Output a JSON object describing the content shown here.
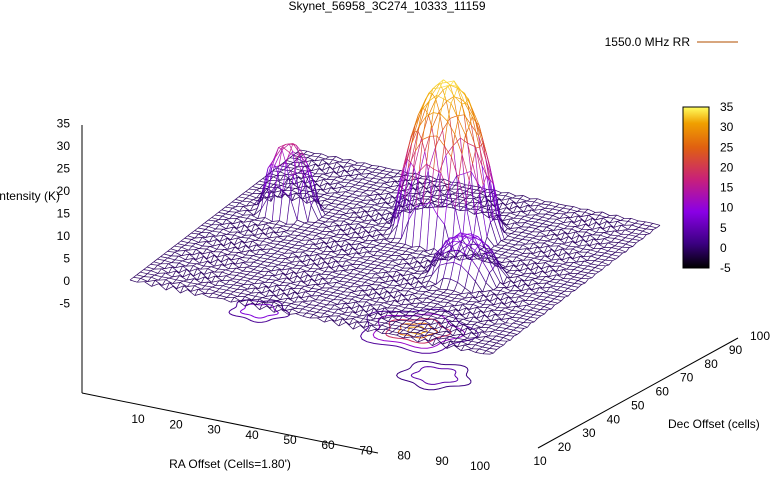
{
  "chart_data": {
    "type": "surface3d",
    "title": "Skynet_56958_3C274_10333_11159",
    "legend": {
      "label": "1550.0 MHz RR",
      "placement": "top-right"
    },
    "xlabel": "RA Offset (Cells=1.80')",
    "ylabel": "Dec Offset (cells)",
    "zlabel": "Intensity (K)",
    "x_ticks": [
      "10",
      "20",
      "30",
      "40",
      "50",
      "60",
      "70",
      "80",
      "90",
      "100"
    ],
    "y_ticks": [
      "10",
      "20",
      "30",
      "40",
      "50",
      "60",
      "70",
      "80",
      "90",
      "100"
    ],
    "z_ticks": [
      "-5",
      "0",
      "5",
      "10",
      "15",
      "20",
      "25",
      "30",
      "35"
    ],
    "colorbar_ticks": [
      "-5",
      "0",
      "5",
      "10",
      "15",
      "20",
      "25",
      "30",
      "35"
    ],
    "xlim": [
      0,
      100
    ],
    "ylim": [
      0,
      100
    ],
    "zlim": [
      -5,
      35
    ],
    "colormap": [
      "#000000",
      "#3a0080",
      "#8a00e6",
      "#c8207a",
      "#e06010",
      "#f0a000",
      "#ffff60"
    ],
    "sources": [
      {
        "x": 55,
        "y": 70,
        "peak": 33,
        "radius": 14
      },
      {
        "x": 15,
        "y": 62,
        "peak": 15,
        "radius": 8
      },
      {
        "x": 72,
        "y": 45,
        "peak": 9,
        "radius": 10
      }
    ],
    "baseline": 0,
    "contours_on_base": true,
    "grid": false
  }
}
